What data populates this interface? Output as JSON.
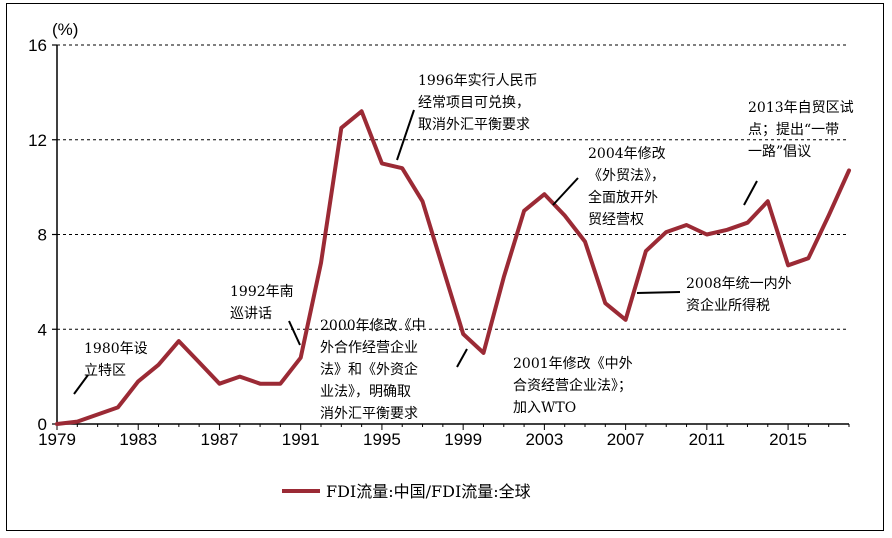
{
  "chart_data": {
    "type": "line",
    "unit_label": "(%)",
    "ylim": [
      0,
      16
    ],
    "yticks": [
      0,
      4,
      8,
      12,
      16
    ],
    "xlim": [
      1979,
      2018
    ],
    "xticks": [
      1979,
      1983,
      1987,
      1991,
      1995,
      1999,
      2003,
      2007,
      2011,
      2015
    ],
    "grid": "horizontal dashed",
    "legend_position": "bottom-center",
    "color": "#9b2a35",
    "series": [
      {
        "name": "FDI流量:中国/FDI流量:全球",
        "x": [
          1979,
          1980,
          1981,
          1982,
          1983,
          1984,
          1985,
          1986,
          1987,
          1988,
          1989,
          1990,
          1991,
          1992,
          1993,
          1994,
          1995,
          1996,
          1997,
          1998,
          1999,
          2000,
          2001,
          2002,
          2003,
          2004,
          2005,
          2006,
          2007,
          2008,
          2009,
          2010,
          2011,
          2012,
          2013,
          2014,
          2015,
          2016,
          2017,
          2018
        ],
        "values": [
          0.0,
          0.1,
          0.4,
          0.7,
          1.8,
          2.5,
          3.5,
          2.6,
          1.7,
          2.0,
          1.7,
          1.7,
          2.8,
          6.8,
          12.5,
          13.2,
          11.0,
          10.8,
          9.4,
          6.6,
          3.8,
          3.0,
          6.2,
          9.0,
          9.7,
          8.8,
          7.7,
          5.1,
          4.4,
          7.3,
          8.1,
          8.4,
          8.0,
          8.2,
          8.5,
          9.4,
          6.7,
          7.0,
          8.8,
          10.7
        ]
      }
    ],
    "annotations": [
      {
        "lines": [
          "1980年设",
          "立特区"
        ],
        "x": 1980,
        "y": 0.0
      },
      {
        "lines": [
          "1992年南",
          "巡讲话"
        ],
        "x": 1992,
        "y": 2.9
      },
      {
        "lines": [
          "2000年修改《中",
          "外合作经营企业",
          "法》和《外资企",
          "业法》，明确取",
          "消外汇平衡要求"
        ],
        "x": 2000,
        "y": 3.2
      },
      {
        "lines": [
          "1996年实行人民币",
          "经常项目可兑换，",
          "取消外汇平衡要求"
        ],
        "x": 1996,
        "y": 11.0
      },
      {
        "lines": [
          "2001年修改《中外",
          "合资经营企业法》；",
          "加入WTO"
        ],
        "x": 2001,
        "y": 3.0
      },
      {
        "lines": [
          "2004年修改",
          "《外贸法》，",
          "全面放开外",
          "贸经营权"
        ],
        "x": 2004,
        "y": 9.5
      },
      {
        "lines": [
          "2008年统一内外",
          "资企业所得税"
        ],
        "x": 2008,
        "y": 5.5
      },
      {
        "lines": [
          "2013年自贸区试",
          "点；提出“一带",
          "一路”倡议"
        ],
        "x": 2013,
        "y": 8.7
      }
    ]
  }
}
